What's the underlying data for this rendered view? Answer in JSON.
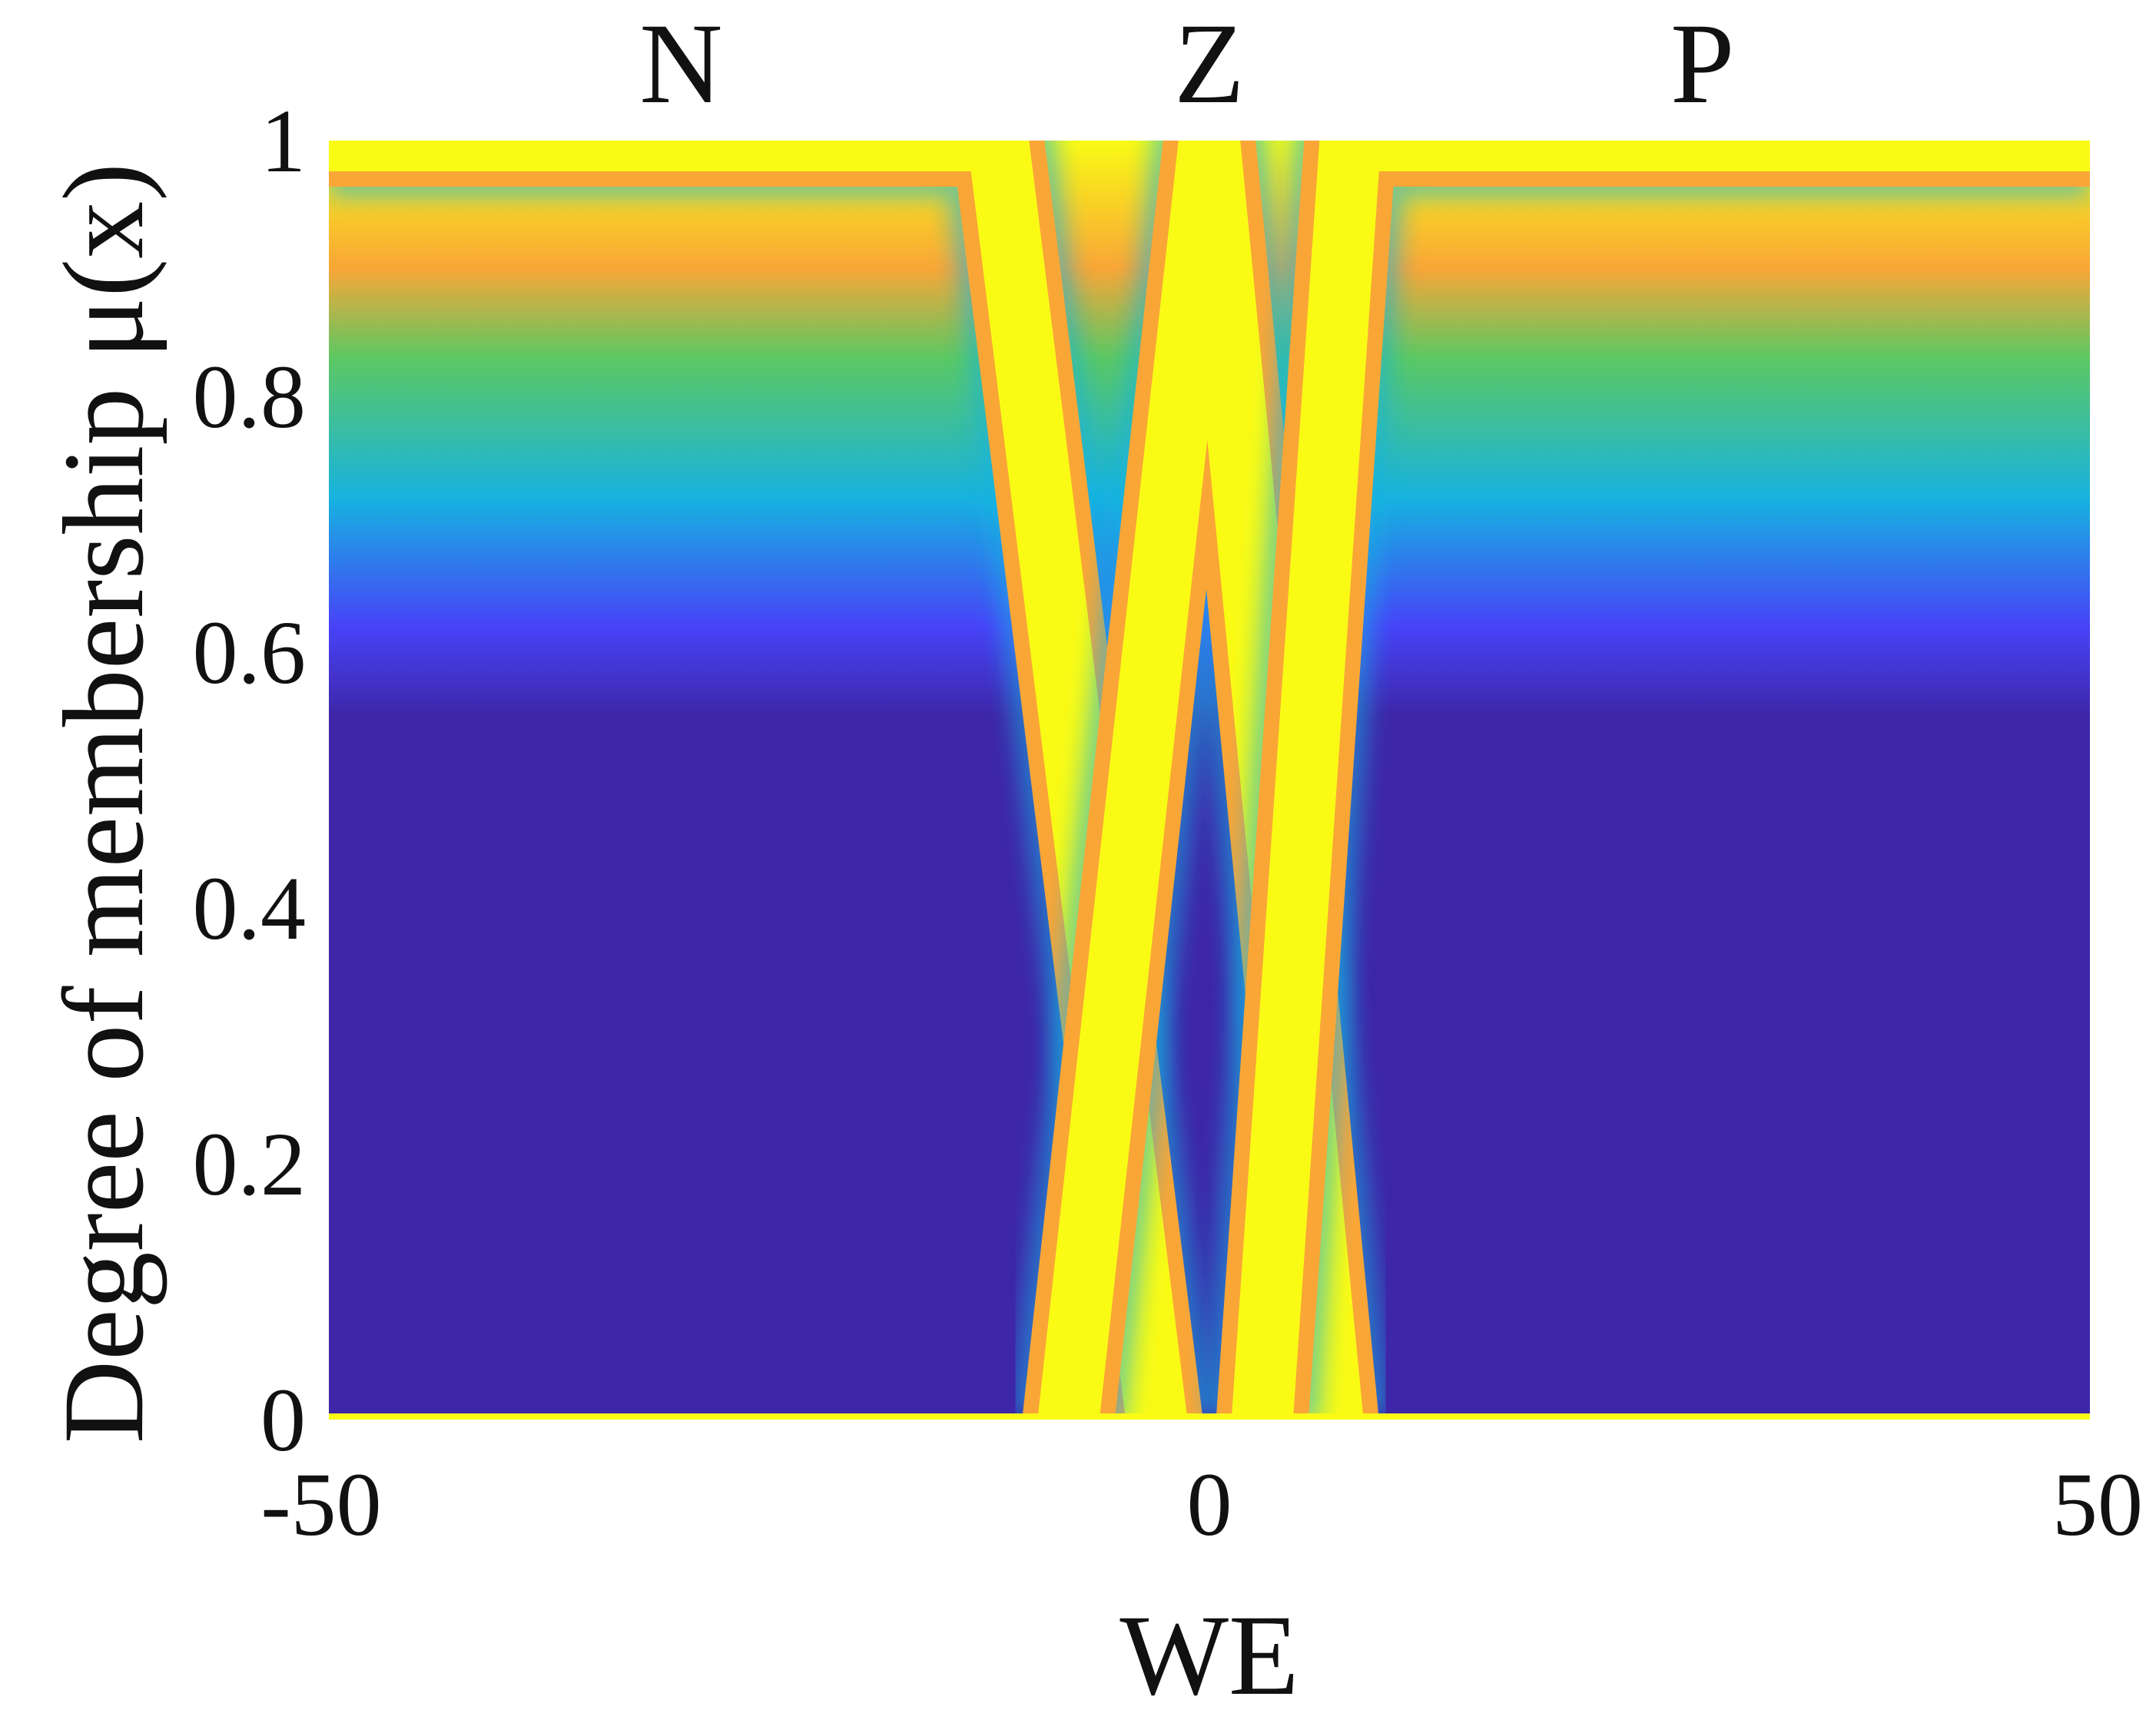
{
  "chart_data": {
    "type": "heatmap",
    "title": "",
    "xlabel": "WE",
    "ylabel": "Degree of membership μ(x)",
    "xlim": [
      -50,
      50
    ],
    "ylim": [
      0,
      1
    ],
    "x_ticks": [
      -50,
      0,
      50
    ],
    "x_tick_labels": [
      "-50",
      "0",
      "50"
    ],
    "y_ticks": [
      0,
      0.2,
      0.4,
      0.6,
      0.8,
      1
    ],
    "y_tick_labels": [
      "0",
      "0.2",
      "0.4",
      "0.6",
      "0.8",
      "1"
    ],
    "grid": false,
    "colormap": "parula",
    "colormap_colors": [
      "#3e26a8",
      "#4743f8",
      "#17b2e0",
      "#5cc863",
      "#f9a637",
      "#f9fb15"
    ],
    "set_labels": [
      {
        "name": "N",
        "center": -30
      },
      {
        "name": "Z",
        "center": 0
      },
      {
        "name": "P",
        "center": 28
      }
    ],
    "membership_functions": [
      {
        "name": "N",
        "shape": "trapezoid",
        "points": [
          -50,
          -50,
          -12,
          -3
        ]
      },
      {
        "name": "Z",
        "shape": "triangle",
        "points": [
          -8,
          0,
          7
        ]
      },
      {
        "name": "P",
        "shape": "trapezoid",
        "points": [
          3,
          8,
          50,
          50
        ]
      }
    ],
    "uncertainty_spread": 4
  }
}
